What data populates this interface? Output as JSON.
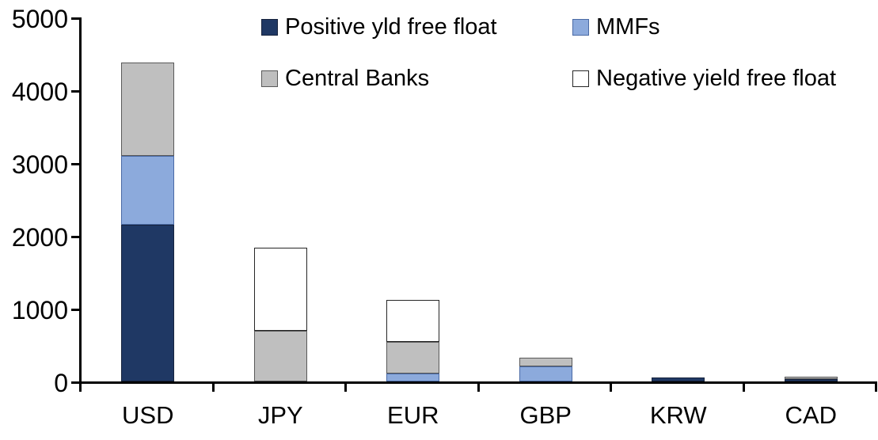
{
  "chart_data": {
    "type": "bar",
    "stacked": true,
    "title": "",
    "xlabel": "",
    "ylabel": "",
    "categories": [
      "USD",
      "JPY",
      "EUR",
      "GBP",
      "KRW",
      "CAD"
    ],
    "series": [
      {
        "name": "Positive yld free float",
        "color": "#1f3864",
        "border": "#17233d",
        "values": [
          2150,
          0,
          0,
          0,
          50,
          35
        ]
      },
      {
        "name": "MMFs",
        "color": "#8caadc",
        "border": "#4a6aa5",
        "values": [
          950,
          0,
          110,
          210,
          0,
          0
        ]
      },
      {
        "name": "Central Banks",
        "color": "#bfbfbf",
        "border": "#595959",
        "values": [
          1280,
          700,
          430,
          120,
          0,
          35
        ]
      },
      {
        "name": "Negative yield free float",
        "color": "#ffffff",
        "border": "#262626",
        "values": [
          0,
          1140,
          575,
          0,
          0,
          0
        ]
      }
    ],
    "totals": [
      4380,
      1840,
      1115,
      330,
      50,
      70
    ],
    "ylim": [
      0,
      5000
    ],
    "ytick_step": 1000,
    "yticklabels": [
      "0",
      "1000",
      "2000",
      "3000",
      "4000",
      "5000"
    ],
    "legend_position": "top",
    "legend_rows": [
      [
        0,
        1
      ],
      [
        2,
        3
      ]
    ],
    "grid": false,
    "axis_color": "#000000",
    "background_color": "#ffffff"
  }
}
